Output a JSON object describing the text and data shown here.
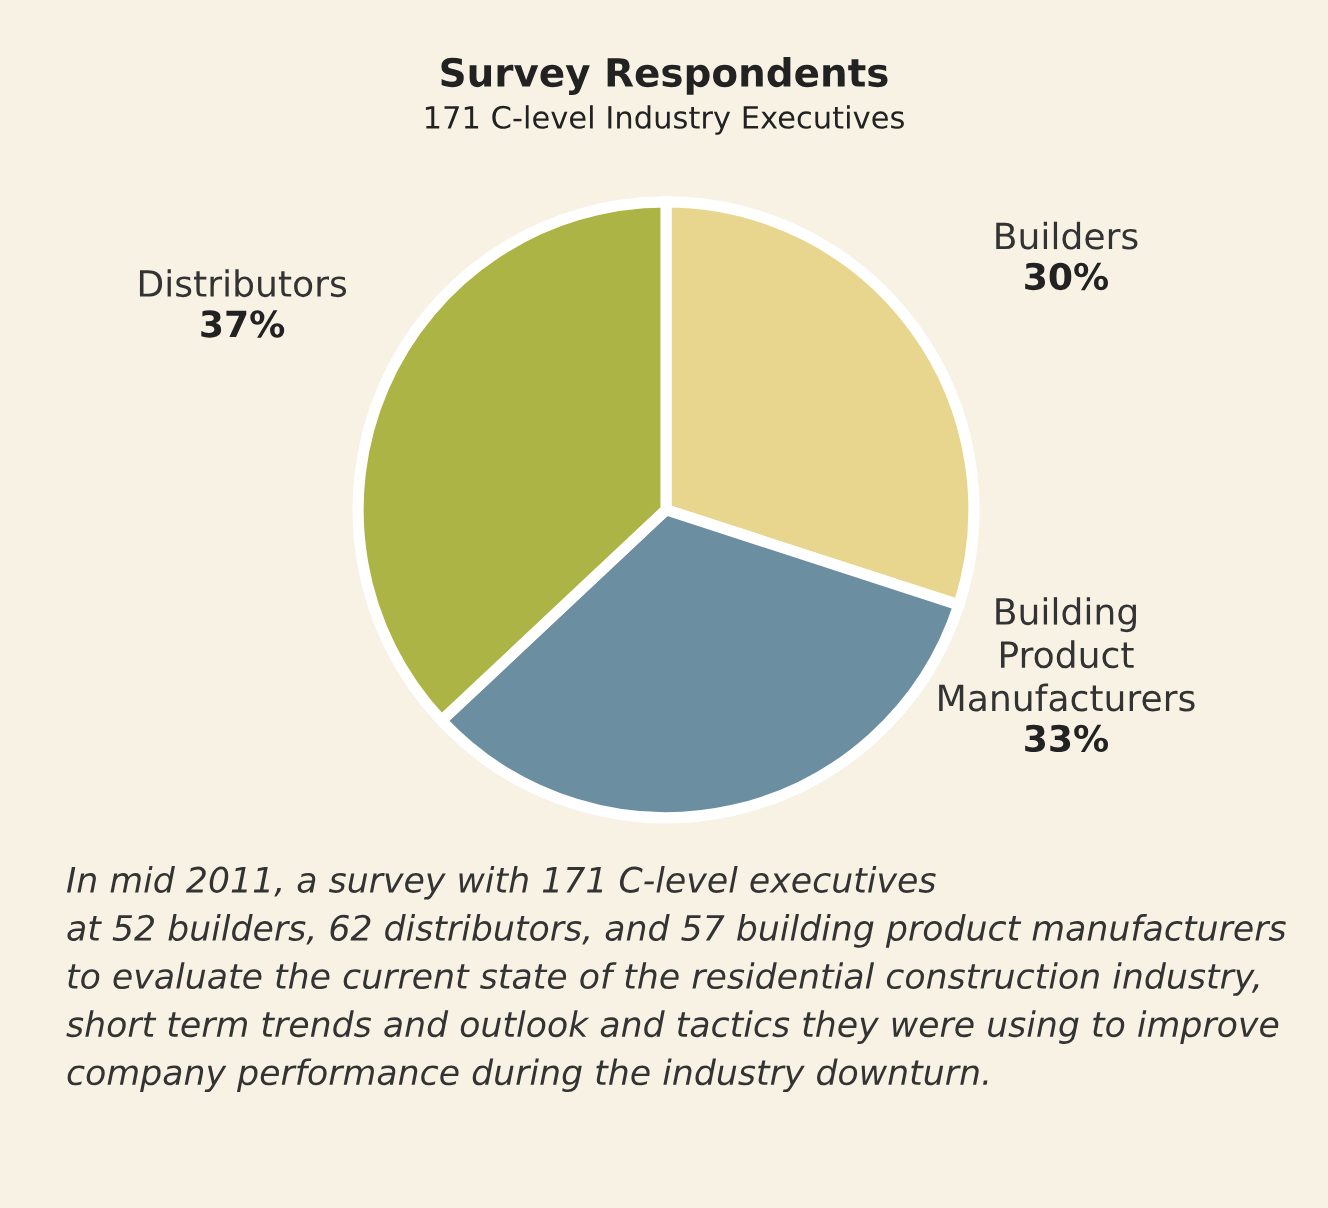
{
  "chart_data": {
    "type": "pie",
    "title": "Survey Respondents",
    "subtitle": "171 C-level Industry Executives",
    "categories": [
      "Builders",
      "Building\nProduct\nManufacturers",
      "Distributors"
    ],
    "values": [
      30,
      33,
      37
    ],
    "value_labels": [
      "30%",
      "33%",
      "37%"
    ],
    "colors": [
      "#e8d68f",
      "#6b8fa0",
      "#abb444"
    ],
    "annotations": [
      "In mid 2011, a survey with 171 C-level executives\nat 52 builders, 62 distributors, and 57 building product manufacturers\nto evaluate the current state of the residential construction industry,\nshort term trends and outlook and tactics they were using to improve\ncompany performance during the industry downturn."
    ]
  }
}
